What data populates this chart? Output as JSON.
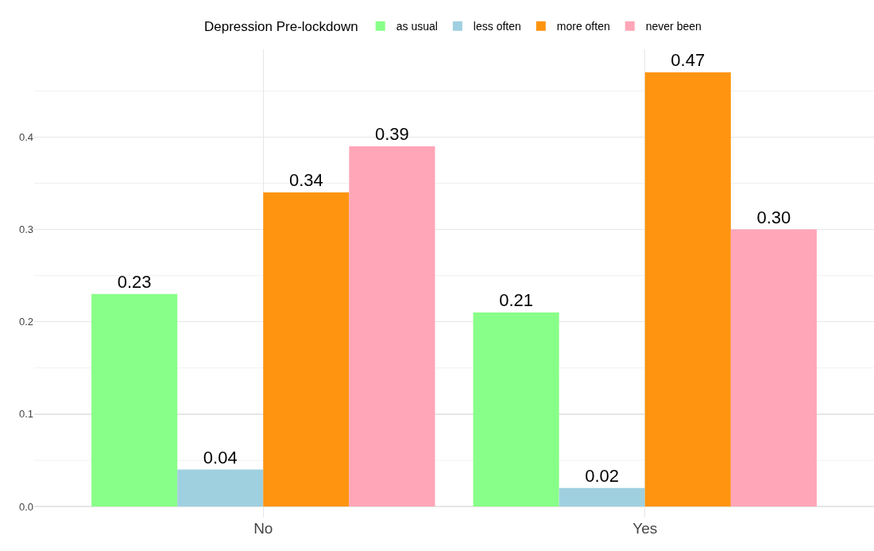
{
  "chart_data": {
    "type": "bar",
    "legend_title": "Depression Pre-lockdown",
    "categories": [
      "No",
      "Yes"
    ],
    "series": [
      {
        "name": "as usual",
        "color": "#88ff88",
        "values": [
          0.23,
          0.21
        ],
        "value_labels": [
          "0.23",
          "0.21"
        ]
      },
      {
        "name": "less often",
        "color": "#9fd0e0",
        "values": [
          0.04,
          0.02
        ],
        "value_labels": [
          "0.04",
          "0.02"
        ]
      },
      {
        "name": "more often",
        "color": "#ff9410",
        "values": [
          0.34,
          0.47
        ],
        "value_labels": [
          "0.34",
          "0.47"
        ]
      },
      {
        "name": "never been",
        "color": "#ffa6b8",
        "values": [
          0.39,
          0.3
        ],
        "value_labels": [
          "0.39",
          "0.30"
        ]
      }
    ],
    "ylim": [
      -0.012,
      0.495
    ],
    "yticks": [
      {
        "value": 0,
        "label": "0.0"
      },
      {
        "value": 0.1,
        "label": "0.1"
      },
      {
        "value": 0.2,
        "label": "0.2"
      },
      {
        "value": 0.3,
        "label": "0.3"
      },
      {
        "value": 0.4,
        "label": "0.4"
      }
    ],
    "grid": true,
    "legend": "top"
  }
}
